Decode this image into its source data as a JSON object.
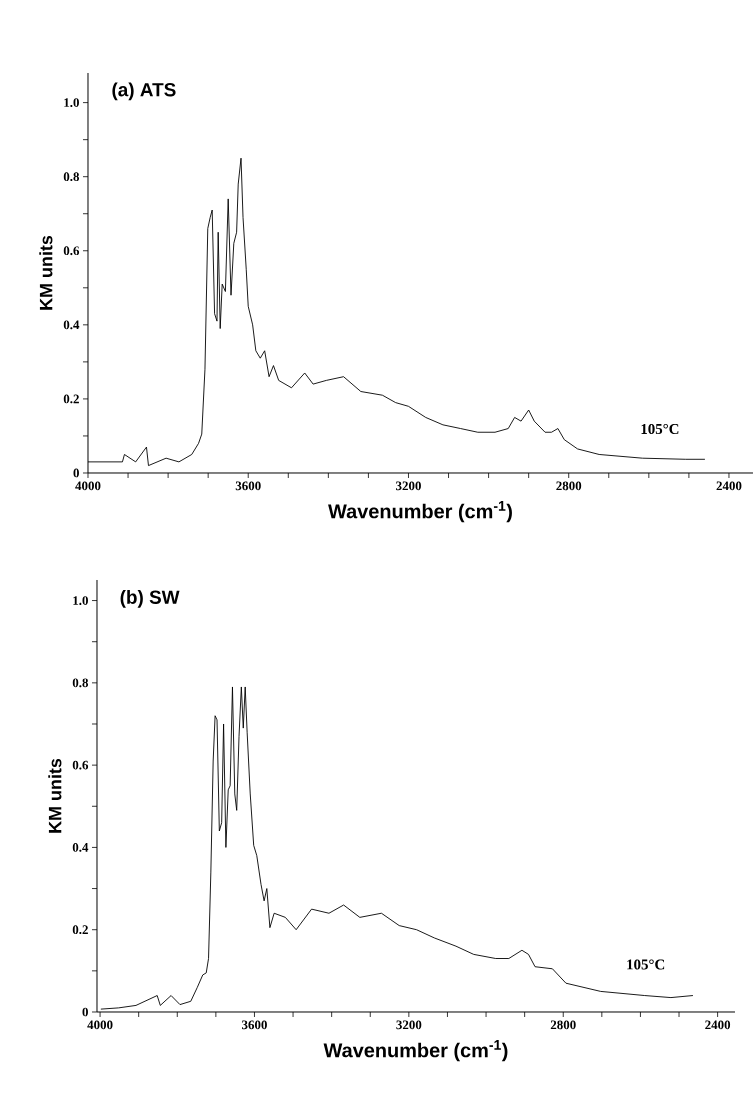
{
  "chart_data": [
    {
      "type": "line",
      "title": "(a)  ATS",
      "xlabel": "Wavenumber (cm$^{-1}$)",
      "ylabel": "KM units",
      "annotations": [
        "105°C"
      ],
      "x": [
        4000,
        3914,
        3909,
        3881,
        3854,
        3849,
        3805,
        3773,
        3741,
        3724,
        3716,
        3708,
        3701,
        3695,
        3690,
        3684,
        3678,
        3675,
        3670,
        3665,
        3657,
        3650,
        3643,
        3636,
        3629,
        3625,
        3618,
        3613,
        3605,
        3600,
        3589,
        3581,
        3570,
        3559,
        3548,
        3537,
        3524,
        3492,
        3459,
        3438,
        3405,
        3362,
        3319,
        3265,
        3232,
        3200,
        3157,
        3114,
        3070,
        3027,
        2984,
        2951,
        2935,
        2919,
        2900,
        2886,
        2859,
        2843,
        2827,
        2811,
        2778,
        2724,
        2616,
        2508,
        2460
      ],
      "series": [
        {
          "color": "#000000",
          "values": [
            0.03,
            0.03,
            0.05,
            0.03,
            0.07,
            0.02,
            0.04,
            0.03,
            0.05,
            0.08,
            0.105,
            0.28,
            0.66,
            0.69,
            0.71,
            0.43,
            0.41,
            0.65,
            0.39,
            0.51,
            0.49,
            0.74,
            0.48,
            0.62,
            0.65,
            0.78,
            0.85,
            0.69,
            0.55,
            0.45,
            0.4,
            0.33,
            0.31,
            0.33,
            0.26,
            0.29,
            0.25,
            0.23,
            0.27,
            0.24,
            0.25,
            0.26,
            0.22,
            0.21,
            0.19,
            0.18,
            0.15,
            0.13,
            0.12,
            0.11,
            0.11,
            0.12,
            0.15,
            0.14,
            0.17,
            0.14,
            0.11,
            0.11,
            0.12,
            0.09,
            0.065,
            0.05,
            0.04,
            0.037,
            0.037
          ]
        }
      ],
      "xlim": [
        4000,
        2340
      ],
      "ylim": [
        0,
        1.08
      ],
      "xticks": [
        4000,
        {
          "value": 3900,
          "label": null
        },
        {
          "value": 3800,
          "label": null
        },
        {
          "value": 3700,
          "label": null
        },
        3600,
        {
          "value": 3500,
          "label": null
        },
        {
          "value": 3400,
          "label": null
        },
        {
          "value": 3300,
          "label": null
        },
        3200,
        {
          "value": 3100,
          "label": null
        },
        {
          "value": 3000,
          "label": null
        },
        {
          "value": 2900,
          "label": null
        },
        2800,
        {
          "value": 2700,
          "label": null
        },
        {
          "value": 2600,
          "label": null
        },
        {
          "value": 2500,
          "label": null
        },
        2400
      ],
      "yticks": [
        0,
        {
          "value": 0.1,
          "label": null
        },
        0.2,
        {
          "value": 0.3,
          "label": null
        },
        0.4,
        {
          "value": 0.5,
          "label": null
        },
        0.6,
        {
          "value": 0.7,
          "label": null
        },
        0.8,
        {
          "value": 0.9,
          "label": null
        },
        {
          "value": 1.0,
          "label": "1.0"
        }
      ]
    },
    {
      "type": "line",
      "title": "(b)  SW",
      "xlabel": "Wavenumber (cm$^{-1}$)",
      "ylabel": "KM units",
      "annotations": [
        "105°C"
      ],
      "x": [
        3998,
        3952,
        3907,
        3852,
        3844,
        3816,
        3793,
        3765,
        3748,
        3734,
        3725,
        3719,
        3713,
        3707,
        3702,
        3697,
        3691,
        3685,
        3680,
        3674,
        3668,
        3663,
        3657,
        3651,
        3646,
        3640,
        3634,
        3629,
        3624,
        3619,
        3611,
        3602,
        3594,
        3583,
        3575,
        3568,
        3560,
        3549,
        3520,
        3492,
        3452,
        3407,
        3369,
        3327,
        3271,
        3225,
        3180,
        3134,
        3078,
        3032,
        2975,
        2941,
        2907,
        2890,
        2873,
        2828,
        2793,
        2703,
        2589,
        2521,
        2464
      ],
      "series": [
        {
          "color": "#000000",
          "values": [
            0.007,
            0.01,
            0.016,
            0.04,
            0.016,
            0.04,
            0.018,
            0.026,
            0.06,
            0.09,
            0.095,
            0.13,
            0.34,
            0.61,
            0.72,
            0.71,
            0.44,
            0.46,
            0.7,
            0.4,
            0.54,
            0.55,
            0.79,
            0.53,
            0.49,
            0.67,
            0.79,
            0.69,
            0.79,
            0.68,
            0.53,
            0.405,
            0.38,
            0.31,
            0.27,
            0.3,
            0.205,
            0.24,
            0.23,
            0.2,
            0.25,
            0.24,
            0.26,
            0.23,
            0.24,
            0.21,
            0.2,
            0.18,
            0.16,
            0.14,
            0.13,
            0.13,
            0.15,
            0.14,
            0.11,
            0.105,
            0.07,
            0.05,
            0.04,
            0.035,
            0.04
          ]
        }
      ],
      "xlim": [
        4008,
        2355
      ],
      "ylim": [
        0,
        1.05
      ],
      "xticks": [
        4000,
        {
          "value": 3900,
          "label": null
        },
        {
          "value": 3800,
          "label": null
        },
        {
          "value": 3700,
          "label": null
        },
        3600,
        {
          "value": 3500,
          "label": null
        },
        {
          "value": 3400,
          "label": null
        },
        {
          "value": 3300,
          "label": null
        },
        3200,
        {
          "value": 3100,
          "label": null
        },
        {
          "value": 3000,
          "label": null
        },
        {
          "value": 2900,
          "label": null
        },
        2800,
        {
          "value": 2700,
          "label": null
        },
        {
          "value": 2600,
          "label": null
        },
        {
          "value": 2500,
          "label": null
        },
        2400
      ],
      "yticks": [
        0,
        {
          "value": 0.1,
          "label": null
        },
        0.2,
        {
          "value": 0.3,
          "label": null
        },
        0.4,
        {
          "value": 0.5,
          "label": null
        },
        0.6,
        {
          "value": 0.7,
          "label": null
        },
        0.8,
        {
          "value": 0.9,
          "label": null
        },
        {
          "value": 1.0,
          "label": "1.0"
        }
      ]
    }
  ]
}
